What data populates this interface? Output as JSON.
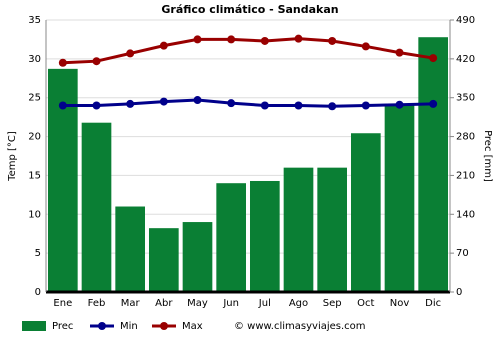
{
  "chart_data": {
    "type": "bar-line",
    "title": "Gráfico climático - Sandakan",
    "categories": [
      "Ene",
      "Feb",
      "Mar",
      "Abr",
      "May",
      "Jun",
      "Jul",
      "Ago",
      "Sep",
      "Oct",
      "Nov",
      "Dic"
    ],
    "series": [
      {
        "name": "Prec",
        "color": "#0a7f34",
        "kind": "bar",
        "axis": "y2",
        "values": [
          402,
          305,
          154,
          115,
          126,
          196,
          200,
          224,
          224,
          286,
          339,
          459
        ]
      },
      {
        "name": "Min",
        "color": "#00008b",
        "kind": "line",
        "values": [
          24.0,
          24.0,
          24.2,
          24.5,
          24.7,
          24.3,
          24.0,
          24.0,
          23.9,
          24.0,
          24.1,
          24.2
        ]
      },
      {
        "name": "Max",
        "color": "#990000",
        "kind": "line",
        "values": [
          29.5,
          29.7,
          30.7,
          31.7,
          32.5,
          32.5,
          32.3,
          32.6,
          32.3,
          31.6,
          30.8,
          30.1
        ]
      }
    ],
    "ylabel": "Temp [°C]",
    "y2label": "Prec [mm]",
    "ylim": [
      0,
      35
    ],
    "yticks": [
      0,
      5,
      10,
      15,
      20,
      25,
      30,
      35
    ],
    "y2lim": [
      0,
      490
    ],
    "y2ticks": [
      0,
      70,
      140,
      210,
      280,
      350,
      420,
      490
    ],
    "grid": true,
    "legend": "bottom",
    "copyright": "© www.climasyviajes.com"
  }
}
